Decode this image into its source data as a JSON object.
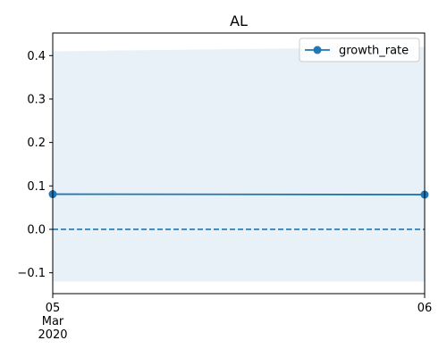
{
  "chart_data": {
    "type": "line",
    "title": "AL",
    "xlabel": "",
    "ylabel": "",
    "x": [
      "2020-03-05",
      "2020-03-06"
    ],
    "x_tick_labels": [
      {
        "day": "05",
        "month": "Mar",
        "year": "2020"
      },
      {
        "day": "06",
        "month": "",
        "year": ""
      }
    ],
    "series": [
      {
        "name": "growth_rate",
        "values": [
          0.081,
          0.08
        ],
        "color": "#1f77b4",
        "marker": "circle",
        "line_style": "solid"
      }
    ],
    "confidence_band": {
      "lower": [
        -0.12,
        -0.12
      ],
      "upper": [
        0.41,
        0.42
      ],
      "color": "#e8f0f8"
    },
    "reference_line": {
      "y": 0.0,
      "line_style": "dashed",
      "color": "#1f77b4"
    },
    "ylim": [
      -0.148,
      0.452
    ],
    "y_ticks": [
      -0.1,
      0.0,
      0.1,
      0.2,
      0.3,
      0.4
    ],
    "y_tick_labels": [
      "−0.1",
      "0.0",
      "0.1",
      "0.2",
      "0.3",
      "0.4"
    ],
    "grid": false,
    "legend_position": "top-right"
  }
}
